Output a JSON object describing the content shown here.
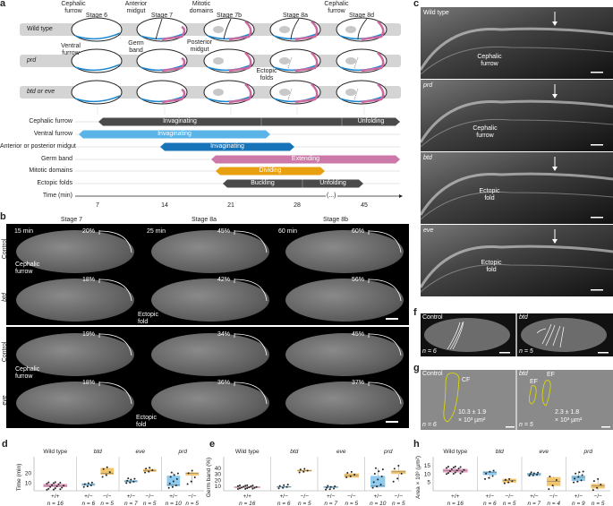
{
  "panel_labels": {
    "a": "a",
    "b": "b",
    "c": "c",
    "d": "d",
    "e": "e",
    "f": "f",
    "g": "g",
    "h": "h"
  },
  "panel_a": {
    "stages": [
      "Stage 6",
      "Stage 7",
      "Stage 7b",
      "Stage 8a",
      "Stage 8d"
    ],
    "genotypes": [
      "Wild type",
      "prd",
      "btd or eve"
    ],
    "annotations": {
      "cephalic_furrow": "Cephalic furrow",
      "ventral_furrow": "Ventral furrow",
      "anterior_midgut": "Anterior midgut",
      "germ_band": "Germ band",
      "posterior_midgut": "Posterior midgut",
      "mitotic_domains": "Mitotic domains",
      "cephalic_furrow_2": "Cephalic furrow",
      "ectopic_folds": "Ectopic folds"
    },
    "timeline": {
      "rows": [
        {
          "label": "Cephalic furrow",
          "color": "#4a4a4a",
          "segments": [
            "Invaginating",
            "",
            "Unfolding"
          ]
        },
        {
          "label": "Ventral furrow",
          "color": "#5ab4e8",
          "segments": [
            "Invaginating"
          ]
        },
        {
          "label": "Anterior or posterior midgut",
          "color": "#1874b8",
          "segments": [
            "Invaginating"
          ]
        },
        {
          "label": "Germ band",
          "color": "#cc78a8",
          "segments": [
            "Extending"
          ]
        },
        {
          "label": "Mitotic domains",
          "color": "#e8a010",
          "segments": [
            "Dividing"
          ]
        },
        {
          "label": "Ectopic folds",
          "color": "#4a4a4a",
          "segments": [
            "Buckling",
            "Unfolding"
          ]
        }
      ],
      "axis_label": "Time (min)",
      "ticks": [
        "7",
        "14",
        "21",
        "28",
        "45"
      ],
      "break_label": "(...)"
    }
  },
  "panel_b": {
    "columns": [
      "Stage 7",
      "Stage 8a",
      "Stage 8b"
    ],
    "rows": [
      "Control",
      "btd",
      "Control",
      "eve"
    ],
    "times": [
      "15 min",
      "25 min",
      "60 min"
    ],
    "percentages": [
      [
        "20%",
        "45%",
        "60%"
      ],
      [
        "18%",
        "42%",
        "56%"
      ],
      [
        "19%",
        "34%",
        "45%"
      ],
      [
        "18%",
        "36%",
        "37%"
      ]
    ],
    "labels": {
      "cephalic_furrow": "Cephalic furrow",
      "ectopic_fold": "Ectopic fold"
    }
  },
  "panel_c": {
    "rows": [
      "Wild type",
      "prd",
      "btd",
      "eve"
    ],
    "labels": [
      "Cephalic furrow",
      "Cephalic furrow",
      "Ectopic fold",
      "Ectopic fold"
    ]
  },
  "panel_f": {
    "left": "Control",
    "right": "btd",
    "n_left": "n = 6",
    "n_right": "n = 5"
  },
  "panel_g": {
    "left": "Control",
    "right": "btd",
    "n_left": "n = 6",
    "n_right": "n = 5",
    "cf": "CF",
    "ef": "EF",
    "area_left": "10.3 ± 1.9",
    "area_right": "2.3 ± 1.8",
    "unit": "× 10³ µm²"
  },
  "chart_data": [
    {
      "type": "box",
      "panel": "d",
      "ylabel": "Time (min)",
      "ylim": [
        2,
        30
      ],
      "yticks": [
        10,
        20
      ],
      "groups": [
        "Wild type",
        "btd",
        "eve",
        "prd"
      ],
      "boxes": [
        {
          "group": "Wild type",
          "genotype": "+/+",
          "n": "n = 16",
          "color": "#e7a3c5",
          "q1": 6,
          "median": 7,
          "q3": 9,
          "min": 3,
          "max": 11
        },
        {
          "group": "btd",
          "genotype": "+/−",
          "n": "n = 6",
          "color": "#8ecbee",
          "q1": 7.5,
          "median": 8.5,
          "q3": 9.5,
          "min": 6,
          "max": 10.5
        },
        {
          "group": "btd",
          "genotype": "−/−",
          "n": "n = 5",
          "color": "#f2c66e",
          "q1": 19,
          "median": 20,
          "q3": 25.5,
          "min": 16.5,
          "max": 26.5
        },
        {
          "group": "eve",
          "genotype": "+/−",
          "n": "n = 7",
          "color": "#8ecbee",
          "q1": 11,
          "median": 12,
          "q3": 13,
          "min": 10,
          "max": 15
        },
        {
          "group": "eve",
          "genotype": "−/−",
          "n": "n = 5",
          "color": "#f2c66e",
          "q1": 22,
          "median": 23,
          "q3": 24.5,
          "min": 21,
          "max": 26
        },
        {
          "group": "prd",
          "genotype": "+/−",
          "n": "n = 10",
          "color": "#8ecbee",
          "q1": 7,
          "median": 8,
          "q3": 17.5,
          "min": 5,
          "max": 21
        },
        {
          "group": "prd",
          "genotype": "−/−",
          "n": "n = 5",
          "color": "#f2c66e",
          "q1": 18,
          "median": 20,
          "q3": 21,
          "min": 9,
          "max": 23
        }
      ]
    },
    {
      "type": "box",
      "panel": "e",
      "ylabel": "Germ band (%)",
      "ylim": [
        3,
        47
      ],
      "yticks": [
        10,
        20,
        30,
        40
      ],
      "groups": [
        "Wild type",
        "btd",
        "eve",
        "prd"
      ],
      "boxes": [
        {
          "group": "Wild type",
          "genotype": "+/+",
          "n": "n = 16",
          "color": "#e7a3c5",
          "q1": 8,
          "median": 9,
          "q3": 9.5,
          "min": 6,
          "max": 12
        },
        {
          "group": "btd",
          "genotype": "+/−",
          "n": "n = 6",
          "color": "#8ecbee",
          "q1": 9,
          "median": 9.5,
          "q3": 10,
          "min": 7,
          "max": 13
        },
        {
          "group": "btd",
          "genotype": "−/−",
          "n": "n = 5",
          "color": "#f2c66e",
          "q1": 35,
          "median": 36,
          "q3": 37,
          "min": 33,
          "max": 39
        },
        {
          "group": "eve",
          "genotype": "+/−",
          "n": "n = 7",
          "color": "#8ecbee",
          "q1": 8,
          "median": 9,
          "q3": 10,
          "min": 5,
          "max": 11
        },
        {
          "group": "eve",
          "genotype": "−/−",
          "n": "n = 5",
          "color": "#f2c66e",
          "q1": 25,
          "median": 28,
          "q3": 31,
          "min": 25,
          "max": 34
        },
        {
          "group": "prd",
          "genotype": "+/−",
          "n": "n = 10",
          "color": "#8ecbee",
          "q1": 9,
          "median": 11,
          "q3": 27,
          "min": 8,
          "max": 40
        },
        {
          "group": "prd",
          "genotype": "−/−",
          "n": "n = 5",
          "color": "#f2c66e",
          "q1": 31,
          "median": 34,
          "q3": 36,
          "min": 18,
          "max": 44
        }
      ]
    },
    {
      "type": "box",
      "panel": "h",
      "ylabel": "Area × 10³ (µm²)",
      "ylim": [
        0,
        16
      ],
      "yticks": [
        5,
        10,
        15
      ],
      "groups": [
        "Wild type",
        "btd",
        "eve",
        "prd"
      ],
      "boxes": [
        {
          "group": "Wild type",
          "genotype": "+/+",
          "n": "n = 16",
          "color": "#e7a3c5",
          "q1": 11,
          "median": 12,
          "q3": 13,
          "min": 10,
          "max": 14.5
        },
        {
          "group": "btd",
          "genotype": "+/−",
          "n": "n = 6",
          "color": "#8ecbee",
          "q1": 9.5,
          "median": 11,
          "q3": 11.5,
          "min": 7,
          "max": 12
        },
        {
          "group": "btd",
          "genotype": "−/−",
          "n": "n = 5",
          "color": "#f2c66e",
          "q1": 5,
          "median": 6,
          "q3": 7,
          "min": 4.5,
          "max": 7
        },
        {
          "group": "eve",
          "genotype": "+/−",
          "n": "n = 7",
          "color": "#8ecbee",
          "q1": 9,
          "median": 10,
          "q3": 10.5,
          "min": 9,
          "max": 11
        },
        {
          "group": "eve",
          "genotype": "−/−",
          "n": "n = 4",
          "color": "#f2c66e",
          "q1": 3,
          "median": 5.5,
          "q3": 8,
          "min": 1,
          "max": 8.5
        },
        {
          "group": "prd",
          "genotype": "+/−",
          "n": "n = 9",
          "color": "#8ecbee",
          "q1": 6,
          "median": 8,
          "q3": 9,
          "min": 5,
          "max": 11.5
        },
        {
          "group": "prd",
          "genotype": "−/−",
          "n": "n = 5",
          "color": "#f2c66e",
          "q1": 1.5,
          "median": 3,
          "q3": 4,
          "min": 0.5,
          "max": 7
        }
      ]
    }
  ]
}
